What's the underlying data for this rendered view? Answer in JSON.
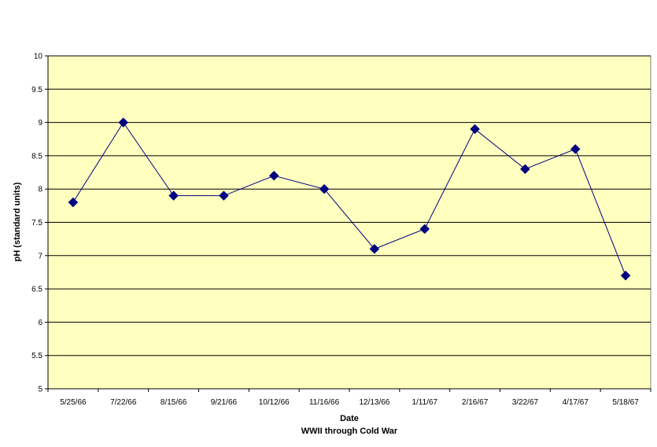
{
  "chart_data": {
    "type": "line",
    "title": "",
    "xlabel": "Date",
    "xlabel_sub": "WWII through Cold War",
    "ylabel": "pH (standard units)",
    "ylim": [
      5,
      10
    ],
    "yticks": [
      "5",
      "5.5",
      "6",
      "6.5",
      "7",
      "7.5",
      "8",
      "8.5",
      "9",
      "9.5",
      "10"
    ],
    "categories": [
      "5/25/66",
      "7/22/66",
      "8/15/66",
      "9/21/66",
      "10/12/66",
      "11/16/66",
      "12/13/66",
      "1/11/67",
      "2/16/67",
      "3/22/67",
      "4/17/67",
      "5/18/67"
    ],
    "series": [
      {
        "values": [
          7.8,
          9.0,
          7.9,
          7.9,
          8.2,
          8.0,
          7.1,
          7.4,
          8.9,
          8.3,
          8.6,
          6.7
        ]
      }
    ],
    "grid": true,
    "legend": "none",
    "colors": {
      "plot_background": "#FFFFC0",
      "line": "#000080",
      "marker": "#000080",
      "gridline": "#000000"
    }
  }
}
